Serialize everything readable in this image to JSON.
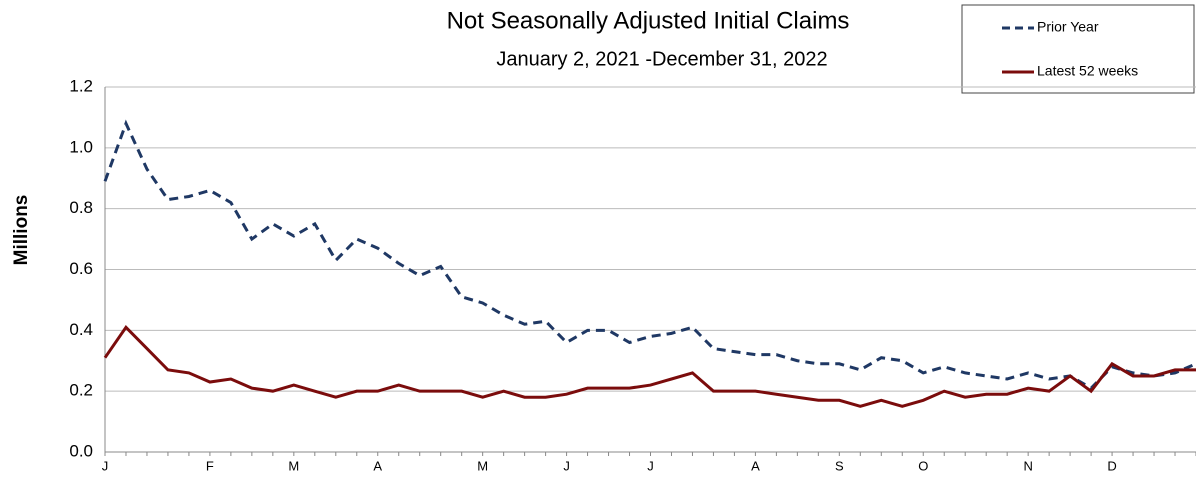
{
  "chart_data": {
    "type": "line",
    "title": "Not Seasonally Adjusted Initial Claims",
    "subtitle": "January 2, 2021 -December 31, 2022",
    "y_label": "Millions",
    "categories": [
      "J",
      null,
      null,
      null,
      null,
      "F",
      null,
      null,
      null,
      "M",
      null,
      null,
      null,
      "A",
      null,
      null,
      null,
      null,
      "M",
      null,
      null,
      null,
      "J",
      null,
      null,
      null,
      "J",
      null,
      null,
      null,
      null,
      "A",
      null,
      null,
      null,
      "S",
      null,
      null,
      null,
      "O",
      null,
      null,
      null,
      null,
      "N",
      null,
      null,
      null,
      "D",
      null,
      null,
      null,
      null
    ],
    "series": [
      {
        "name": "Prior Year",
        "color": "#1f3864",
        "dash": true,
        "values": [
          0.89,
          1.08,
          0.93,
          0.83,
          0.84,
          0.86,
          0.82,
          0.7,
          0.75,
          0.71,
          0.75,
          0.63,
          0.7,
          0.67,
          0.62,
          0.58,
          0.61,
          0.51,
          0.49,
          0.45,
          0.42,
          0.43,
          0.36,
          0.4,
          0.4,
          0.36,
          0.38,
          0.39,
          0.41,
          0.34,
          0.33,
          0.32,
          0.32,
          0.3,
          0.29,
          0.29,
          0.27,
          0.31,
          0.3,
          0.26,
          0.28,
          0.26,
          0.25,
          0.24,
          0.26,
          0.24,
          0.25,
          0.21,
          0.28,
          0.26,
          0.25,
          0.26,
          0.29
        ]
      },
      {
        "name": "Latest 52 weeks",
        "color": "#7b0c0c",
        "dash": false,
        "values": [
          0.31,
          0.41,
          0.34,
          0.27,
          0.26,
          0.23,
          0.24,
          0.21,
          0.2,
          0.22,
          0.2,
          0.18,
          0.2,
          0.2,
          0.22,
          0.2,
          0.2,
          0.2,
          0.18,
          0.2,
          0.18,
          0.18,
          0.19,
          0.21,
          0.21,
          0.21,
          0.22,
          0.24,
          0.26,
          0.2,
          0.2,
          0.2,
          0.19,
          0.18,
          0.17,
          0.17,
          0.15,
          0.17,
          0.15,
          0.17,
          0.2,
          0.18,
          0.19,
          0.19,
          0.21,
          0.2,
          0.25,
          0.2,
          0.29,
          0.25,
          0.25,
          0.27,
          0.27
        ]
      }
    ],
    "ylim": [
      0,
      1.2
    ],
    "yticks": [
      {
        "value": 0,
        "label": "0.0"
      },
      0.2,
      0.4,
      0.6,
      0.8,
      {
        "value": 1,
        "label": "1.0"
      },
      1.2
    ],
    "grid": true
  }
}
